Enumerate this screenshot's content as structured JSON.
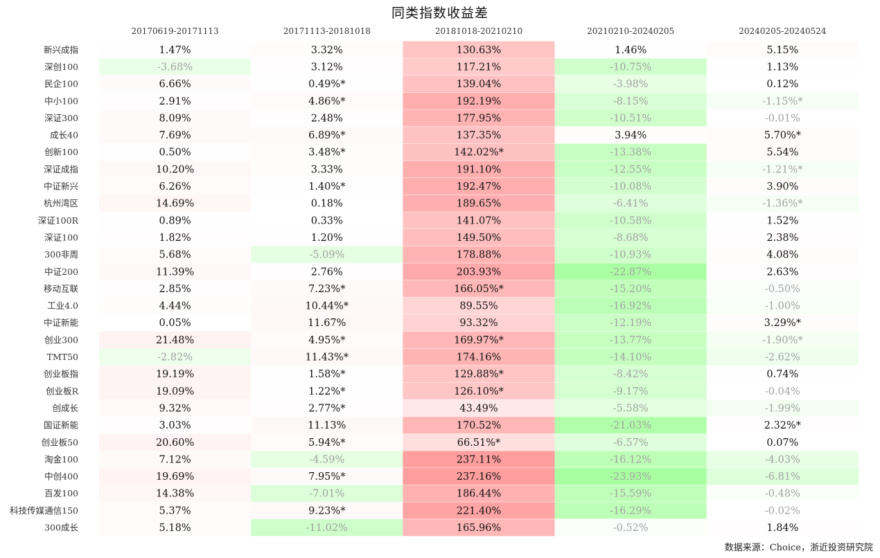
{
  "chart_data": {
    "type": "heatmap",
    "title": "同类指数收益差",
    "columns": [
      "20170619-20171113",
      "20171113-20181018",
      "20181018-20210210",
      "20210210-20240205",
      "20240205-20240524"
    ],
    "rows": [
      {
        "name": "新兴成指",
        "cells": [
          {
            "text": "1.47%",
            "value": 1.47
          },
          {
            "text": "3.32%",
            "value": 3.32
          },
          {
            "text": "130.63%",
            "value": 130.63
          },
          {
            "text": "1.46%",
            "value": 1.46
          },
          {
            "text": "5.15%",
            "value": 5.15
          }
        ]
      },
      {
        "name": "深创100",
        "cells": [
          {
            "text": "-3.68%",
            "value": -3.68
          },
          {
            "text": "3.12%",
            "value": 3.12
          },
          {
            "text": "117.21%",
            "value": 117.21
          },
          {
            "text": "-10.75%",
            "value": -10.75
          },
          {
            "text": "1.13%",
            "value": 1.13
          }
        ]
      },
      {
        "name": "民企100",
        "cells": [
          {
            "text": "6.66%",
            "value": 6.66
          },
          {
            "text": "0.49%*",
            "value": 0.49
          },
          {
            "text": "139.04%",
            "value": 139.04
          },
          {
            "text": "-3.98%",
            "value": -3.98
          },
          {
            "text": "0.12%",
            "value": 0.12
          }
        ]
      },
      {
        "name": "中小100",
        "cells": [
          {
            "text": "2.91%",
            "value": 2.91
          },
          {
            "text": "4.86%*",
            "value": 4.86
          },
          {
            "text": "192.19%",
            "value": 192.19
          },
          {
            "text": "-8.15%",
            "value": -8.15
          },
          {
            "text": "-1.15%*",
            "value": -1.15
          }
        ]
      },
      {
        "name": "深证300",
        "cells": [
          {
            "text": "8.09%",
            "value": 8.09
          },
          {
            "text": "2.48%",
            "value": 2.48
          },
          {
            "text": "177.95%",
            "value": 177.95
          },
          {
            "text": "-10.51%",
            "value": -10.51
          },
          {
            "text": "-0.01%",
            "value": -0.01
          }
        ]
      },
      {
        "name": "成长40",
        "cells": [
          {
            "text": "7.69%",
            "value": 7.69
          },
          {
            "text": "6.89%*",
            "value": 6.89
          },
          {
            "text": "137.35%",
            "value": 137.35
          },
          {
            "text": "3.94%",
            "value": 3.94
          },
          {
            "text": "5.70%*",
            "value": 5.7
          }
        ]
      },
      {
        "name": "创新100",
        "cells": [
          {
            "text": "0.50%",
            "value": 0.5
          },
          {
            "text": "3.48%*",
            "value": 3.48
          },
          {
            "text": "142.02%*",
            "value": 142.02
          },
          {
            "text": "-13.38%",
            "value": -13.38
          },
          {
            "text": "5.54%",
            "value": 5.54
          }
        ]
      },
      {
        "name": "深证成指",
        "cells": [
          {
            "text": "10.20%",
            "value": 10.2
          },
          {
            "text": "3.33%",
            "value": 3.33
          },
          {
            "text": "191.10%",
            "value": 191.1
          },
          {
            "text": "-12.55%",
            "value": -12.55
          },
          {
            "text": "-1.21%*",
            "value": -1.21
          }
        ]
      },
      {
        "name": "中证新兴",
        "cells": [
          {
            "text": "6.26%",
            "value": 6.26
          },
          {
            "text": "1.40%*",
            "value": 1.4
          },
          {
            "text": "192.47%",
            "value": 192.47
          },
          {
            "text": "-10.08%",
            "value": -10.08
          },
          {
            "text": "3.90%",
            "value": 3.9
          }
        ]
      },
      {
        "name": "杭州湾区",
        "cells": [
          {
            "text": "14.69%",
            "value": 14.69
          },
          {
            "text": "0.18%",
            "value": 0.18
          },
          {
            "text": "189.65%",
            "value": 189.65
          },
          {
            "text": "-6.41%",
            "value": -6.41
          },
          {
            "text": "-1.36%*",
            "value": -1.36
          }
        ]
      },
      {
        "name": "深证100R",
        "cells": [
          {
            "text": "0.89%",
            "value": 0.89
          },
          {
            "text": "0.33%",
            "value": 0.33
          },
          {
            "text": "141.07%",
            "value": 141.07
          },
          {
            "text": "-10.58%",
            "value": -10.58
          },
          {
            "text": "1.52%",
            "value": 1.52
          }
        ]
      },
      {
        "name": "深证100",
        "cells": [
          {
            "text": "1.82%",
            "value": 1.82
          },
          {
            "text": "1.20%",
            "value": 1.2
          },
          {
            "text": "149.50%",
            "value": 149.5
          },
          {
            "text": "-8.68%",
            "value": -8.68
          },
          {
            "text": "2.38%",
            "value": 2.38
          }
        ]
      },
      {
        "name": "300非周",
        "cells": [
          {
            "text": "5.68%",
            "value": 5.68
          },
          {
            "text": "-5.09%",
            "value": -5.09
          },
          {
            "text": "178.88%",
            "value": 178.88
          },
          {
            "text": "-10.93%",
            "value": -10.93
          },
          {
            "text": "4.08%",
            "value": 4.08
          }
        ]
      },
      {
        "name": "中证200",
        "cells": [
          {
            "text": "11.39%",
            "value": 11.39
          },
          {
            "text": "2.76%",
            "value": 2.76
          },
          {
            "text": "203.93%",
            "value": 203.93
          },
          {
            "text": "-22.87%",
            "value": -22.87
          },
          {
            "text": "2.63%",
            "value": 2.63
          }
        ]
      },
      {
        "name": "移动互联",
        "cells": [
          {
            "text": "2.85%",
            "value": 2.85
          },
          {
            "text": "7.23%*",
            "value": 7.23
          },
          {
            "text": "166.05%*",
            "value": 166.05
          },
          {
            "text": "-15.20%",
            "value": -15.2
          },
          {
            "text": "-0.50%",
            "value": -0.5
          }
        ]
      },
      {
        "name": "工业4.0",
        "cells": [
          {
            "text": "4.44%",
            "value": 4.44
          },
          {
            "text": "10.44%*",
            "value": 10.44
          },
          {
            "text": "89.55%",
            "value": 89.55
          },
          {
            "text": "-16.92%",
            "value": -16.92
          },
          {
            "text": "-1.00%",
            "value": -1.0
          }
        ]
      },
      {
        "name": "中证新能",
        "cells": [
          {
            "text": "0.05%",
            "value": 0.05
          },
          {
            "text": "11.67%",
            "value": 11.67
          },
          {
            "text": "93.32%",
            "value": 93.32
          },
          {
            "text": "-12.19%",
            "value": -12.19
          },
          {
            "text": "3.29%*",
            "value": 3.29
          }
        ]
      },
      {
        "name": "创业300",
        "cells": [
          {
            "text": "21.48%",
            "value": 21.48
          },
          {
            "text": "4.95%*",
            "value": 4.95
          },
          {
            "text": "169.97%*",
            "value": 169.97
          },
          {
            "text": "-13.77%",
            "value": -13.77
          },
          {
            "text": "-1.90%*",
            "value": -1.9
          }
        ]
      },
      {
        "name": "TMT50",
        "cells": [
          {
            "text": "-2.82%",
            "value": -2.82
          },
          {
            "text": "11.43%*",
            "value": 11.43
          },
          {
            "text": "174.16%",
            "value": 174.16
          },
          {
            "text": "-14.10%",
            "value": -14.1
          },
          {
            "text": "-2.62%",
            "value": -2.62
          }
        ]
      },
      {
        "name": "创业板指",
        "cells": [
          {
            "text": "19.19%",
            "value": 19.19
          },
          {
            "text": "1.58%*",
            "value": 1.58
          },
          {
            "text": "129.88%*",
            "value": 129.88
          },
          {
            "text": "-8.42%",
            "value": -8.42
          },
          {
            "text": "0.74%",
            "value": 0.74
          }
        ]
      },
      {
        "name": "创业板R",
        "cells": [
          {
            "text": "19.09%",
            "value": 19.09
          },
          {
            "text": "1.22%*",
            "value": 1.22
          },
          {
            "text": "126.10%*",
            "value": 126.1
          },
          {
            "text": "-9.17%",
            "value": -9.17
          },
          {
            "text": "-0.04%",
            "value": -0.04
          }
        ]
      },
      {
        "name": "创成长",
        "cells": [
          {
            "text": "9.32%",
            "value": 9.32
          },
          {
            "text": "2.77%*",
            "value": 2.77
          },
          {
            "text": "43.49%",
            "value": 43.49
          },
          {
            "text": "-5.58%",
            "value": -5.58
          },
          {
            "text": "-1.99%",
            "value": -1.99
          }
        ]
      },
      {
        "name": "国证新能",
        "cells": [
          {
            "text": "3.03%",
            "value": 3.03
          },
          {
            "text": "11.13%",
            "value": 11.13
          },
          {
            "text": "170.52%",
            "value": 170.52
          },
          {
            "text": "-21.03%",
            "value": -21.03
          },
          {
            "text": "2.32%*",
            "value": 2.32
          }
        ]
      },
      {
        "name": "创业板50",
        "cells": [
          {
            "text": "20.60%",
            "value": 20.6
          },
          {
            "text": "5.94%*",
            "value": 5.94
          },
          {
            "text": "66.51%*",
            "value": 66.51
          },
          {
            "text": "-6.57%",
            "value": -6.57
          },
          {
            "text": "0.07%",
            "value": 0.07
          }
        ]
      },
      {
        "name": "淘金100",
        "cells": [
          {
            "text": "7.12%",
            "value": 7.12
          },
          {
            "text": "-4.59%",
            "value": -4.59
          },
          {
            "text": "237.11%",
            "value": 237.11
          },
          {
            "text": "-16.12%",
            "value": -16.12
          },
          {
            "text": "-4.03%",
            "value": -4.03
          }
        ]
      },
      {
        "name": "中创400",
        "cells": [
          {
            "text": "19.69%",
            "value": 19.69
          },
          {
            "text": "7.95%*",
            "value": 7.95
          },
          {
            "text": "237.16%",
            "value": 237.16
          },
          {
            "text": "-23.93%",
            "value": -23.93
          },
          {
            "text": "-6.81%",
            "value": -6.81
          }
        ]
      },
      {
        "name": "百发100",
        "cells": [
          {
            "text": "14.38%",
            "value": 14.38
          },
          {
            "text": "-7.01%",
            "value": -7.01
          },
          {
            "text": "186.44%",
            "value": 186.44
          },
          {
            "text": "-15.59%",
            "value": -15.59
          },
          {
            "text": "-0.48%",
            "value": -0.48
          }
        ]
      },
      {
        "name": "科技传媒通信150",
        "cells": [
          {
            "text": "5.37%",
            "value": 5.37
          },
          {
            "text": "9.23%*",
            "value": 9.23
          },
          {
            "text": "221.40%",
            "value": 221.4
          },
          {
            "text": "-16.29%",
            "value": -16.29
          },
          {
            "text": "-0.02%",
            "value": -0.02
          }
        ]
      },
      {
        "name": "300成长",
        "cells": [
          {
            "text": "5.18%",
            "value": 5.18
          },
          {
            "text": "-11.02%",
            "value": -11.02
          },
          {
            "text": "165.96%",
            "value": 165.96
          },
          {
            "text": "-0.52%",
            "value": -0.52
          },
          {
            "text": "1.84%",
            "value": 1.84
          }
        ]
      }
    ],
    "colors": {
      "positive": "#ff9e9e",
      "negative": "#a8ffa0",
      "positive_text": "#111111",
      "negative_text": "#a0a0a0"
    }
  },
  "source": "数据来源：Choice，浙近投资研究院"
}
